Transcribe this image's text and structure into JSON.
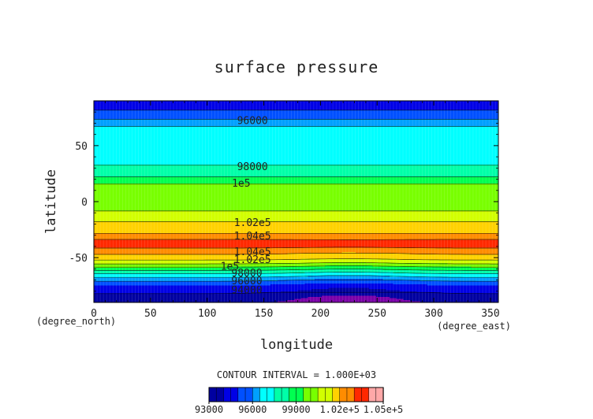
{
  "chart_data": {
    "type": "heatmap",
    "title": "surface pressure",
    "xlabel": "longitude",
    "ylabel": "latitude",
    "x_units": "(degree_east)",
    "y_units": "(degree_north)",
    "xlim": [
      0,
      357
    ],
    "ylim": [
      -90,
      90
    ],
    "x_ticks": [
      {
        "value": 0,
        "label": "0"
      },
      {
        "value": 50,
        "label": "50"
      },
      {
        "value": 100,
        "label": "100"
      },
      {
        "value": 150,
        "label": "150"
      },
      {
        "value": 200,
        "label": "200"
      },
      {
        "value": 250,
        "label": "250"
      },
      {
        "value": 300,
        "label": "300"
      },
      {
        "value": 350,
        "label": "350"
      }
    ],
    "y_ticks": [
      {
        "value": 50,
        "label": "50"
      },
      {
        "value": 0,
        "label": "0"
      },
      {
        "value": -50,
        "label": "-50"
      }
    ],
    "contour_interval_text": "CONTOUR INTERVAL = 1.000E+03",
    "levels": [
      93000,
      94000,
      95000,
      96000,
      97000,
      98000,
      99000,
      100000,
      101000,
      102000,
      103000,
      104000,
      105000
    ],
    "level_colors": [
      "#0000a0",
      "#0000e6",
      "#0050ff",
      "#00a0ff",
      "#00ffff",
      "#00ffa8",
      "#00ff50",
      "#78ff00",
      "#d2ff00",
      "#ffd200",
      "#ff8c00",
      "#ff2800",
      "#ffa8a8"
    ],
    "below_color": "#7a00a8",
    "lat_profile": [
      [
        90,
        94500
      ],
      [
        85,
        94600
      ],
      [
        80,
        95200
      ],
      [
        75,
        95800
      ],
      [
        70,
        96500
      ],
      [
        65,
        97400
      ],
      [
        60,
        97600
      ],
      [
        55,
        97700
      ],
      [
        50,
        97700
      ],
      [
        45,
        97700
      ],
      [
        40,
        97800
      ],
      [
        35,
        97900
      ],
      [
        30,
        98100
      ],
      [
        25,
        98600
      ],
      [
        20,
        99300
      ],
      [
        15,
        100100
      ],
      [
        10,
        100500
      ],
      [
        5,
        100600
      ],
      [
        0,
        100700
      ],
      [
        -5,
        100800
      ],
      [
        -10,
        101100
      ],
      [
        -15,
        101600
      ],
      [
        -20,
        102300
      ],
      [
        -25,
        102800
      ],
      [
        -30,
        103100
      ],
      [
        -35,
        104300
      ],
      [
        -40,
        104300
      ],
      [
        -45,
        103300
      ],
      [
        -50,
        102600
      ],
      [
        -55,
        101200
      ],
      [
        -60,
        99500
      ],
      [
        -65,
        97800
      ],
      [
        -70,
        96300
      ],
      [
        -75,
        95000
      ],
      [
        -80,
        94300
      ],
      [
        -85,
        93600
      ],
      [
        -90,
        93200
      ]
    ],
    "contour_labels": [
      {
        "text": "96000",
        "lon": 140,
        "lat": 72
      },
      {
        "text": "98000",
        "lon": 140,
        "lat": 31
      },
      {
        "text": "1e5",
        "lon": 130,
        "lat": 16
      },
      {
        "text": "1.02e5",
        "lon": 140,
        "lat": -19
      },
      {
        "text": "1.04e5",
        "lon": 140,
        "lat": -31
      },
      {
        "text": "1.04e5",
        "lon": 140,
        "lat": -45
      },
      {
        "text": "1.02e5",
        "lon": 140,
        "lat": -52
      },
      {
        "text": "1e5",
        "lon": 120,
        "lat": -58
      },
      {
        "text": "98000",
        "lon": 135,
        "lat": -64
      },
      {
        "text": "96000",
        "lon": 135,
        "lat": -71
      },
      {
        "text": "94000",
        "lon": 135,
        "lat": -79
      }
    ],
    "colorbar_labels": [
      "93000",
      "96000",
      "99000",
      "1.02e+5",
      "1.05e+5"
    ],
    "grid": false,
    "legend": "bottom-center colorbar"
  }
}
